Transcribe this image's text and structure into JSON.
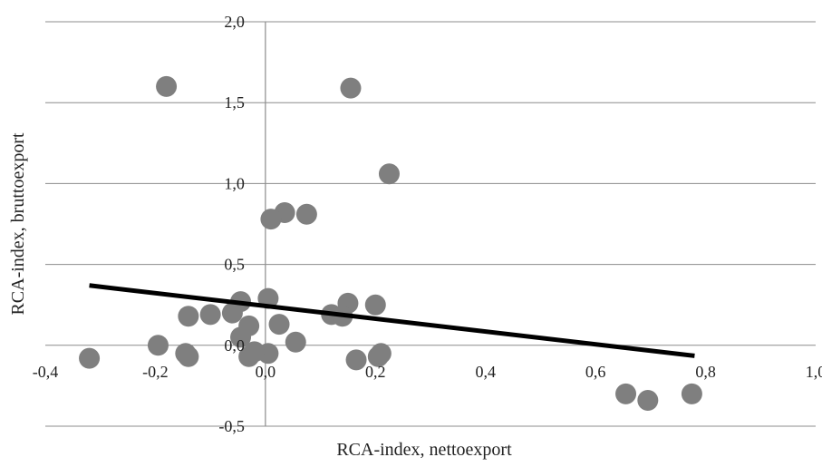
{
  "chart_data": {
    "type": "scatter",
    "title": "",
    "xlabel": "RCA-index, nettoexport",
    "ylabel": "RCA-index, bruttoexport",
    "xlim": [
      -0.4,
      1.0
    ],
    "ylim": [
      -0.5,
      2.0
    ],
    "x_ticks": [
      -0.4,
      -0.2,
      0.0,
      0.2,
      0.4,
      0.6,
      0.8,
      1.0
    ],
    "x_tick_labels": [
      "-0,4",
      "-0,2",
      "0,0",
      "0,2",
      "0,4",
      "0,6",
      "0,8",
      "1,0"
    ],
    "y_ticks": [
      -0.5,
      0.0,
      0.5,
      1.0,
      1.5,
      2.0
    ],
    "y_tick_labels": [
      "-0,5",
      "0,0",
      "0,5",
      "1,0",
      "1,5",
      "2,0"
    ],
    "grid": {
      "horizontal": true,
      "vertical": false
    },
    "legend": "none",
    "points": [
      {
        "x": -0.18,
        "y": 1.6
      },
      {
        "x": 0.155,
        "y": 1.59
      },
      {
        "x": 0.225,
        "y": 1.06
      },
      {
        "x": 0.035,
        "y": 0.82
      },
      {
        "x": 0.075,
        "y": 0.81
      },
      {
        "x": 0.01,
        "y": 0.78
      },
      {
        "x": -0.045,
        "y": 0.27
      },
      {
        "x": 0.005,
        "y": 0.29
      },
      {
        "x": 0.15,
        "y": 0.26
      },
      {
        "x": 0.2,
        "y": 0.25
      },
      {
        "x": -0.14,
        "y": 0.18
      },
      {
        "x": -0.1,
        "y": 0.19
      },
      {
        "x": -0.06,
        "y": 0.2
      },
      {
        "x": 0.12,
        "y": 0.19
      },
      {
        "x": 0.14,
        "y": 0.18
      },
      {
        "x": -0.03,
        "y": 0.12
      },
      {
        "x": 0.025,
        "y": 0.13
      },
      {
        "x": -0.045,
        "y": 0.05
      },
      {
        "x": 0.055,
        "y": 0.02
      },
      {
        "x": -0.195,
        "y": 0.0
      },
      {
        "x": -0.32,
        "y": -0.08
      },
      {
        "x": -0.14,
        "y": -0.07
      },
      {
        "x": -0.145,
        "y": -0.05
      },
      {
        "x": -0.03,
        "y": -0.07
      },
      {
        "x": 0.005,
        "y": -0.05
      },
      {
        "x": -0.02,
        "y": -0.04
      },
      {
        "x": 0.165,
        "y": -0.09
      },
      {
        "x": 0.205,
        "y": -0.07
      },
      {
        "x": 0.21,
        "y": -0.05
      },
      {
        "x": 0.655,
        "y": -0.3
      },
      {
        "x": 0.695,
        "y": -0.34
      },
      {
        "x": 0.775,
        "y": -0.3
      }
    ],
    "trendline": {
      "x": [
        -0.32,
        0.78
      ],
      "y": [
        0.37,
        -0.065
      ]
    },
    "colors": {
      "point": "#7f7f7f",
      "trendline": "#000000",
      "grid": "#8c8c8c",
      "axis": "#8c8c8c"
    }
  }
}
